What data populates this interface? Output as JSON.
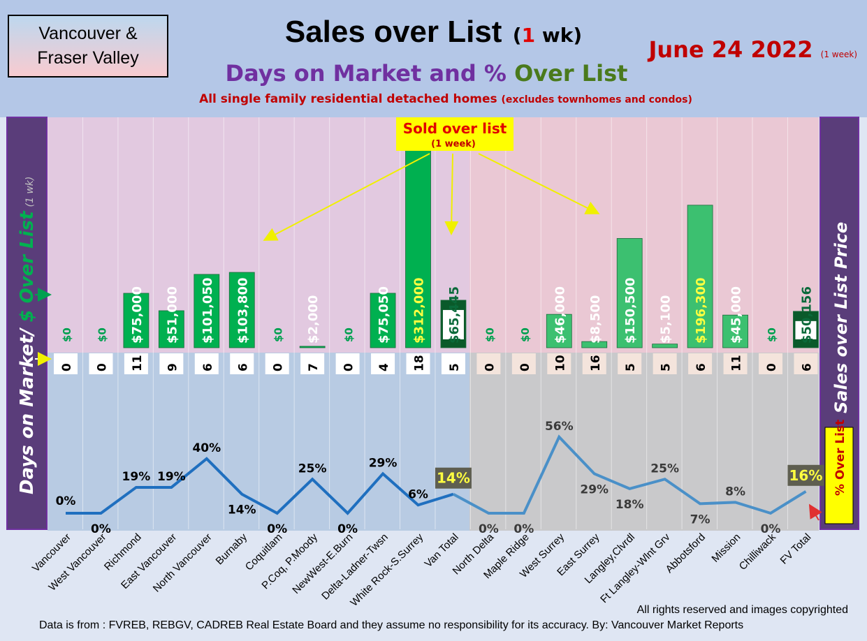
{
  "header": {
    "region_line1": "Vancouver &",
    "region_line2": "Fraser Valley",
    "title_main": "Sales over List",
    "title_paren_open": "(",
    "title_number": "1",
    "title_unit": " wk)",
    "subtitle_part1": "Days on Market and % ",
    "subtitle_part2": "Over List",
    "description": "All single family residential detached homes",
    "description_note": "(excludes townhomes and condos)",
    "date": "June 24  2022",
    "date_note": "(1 week)"
  },
  "side_labels": {
    "left_days": "Days on Market/",
    "left_dollar": " $ Over List",
    "left_note": "(1 wk)",
    "right": "Sales over List Price",
    "pct_box": "% Over List"
  },
  "annotation": {
    "line1": "Sold over list",
    "line2": "(1 week)"
  },
  "footer": {
    "rights": "All rights reserved and  images copyrighted",
    "source": "Data is from : FVREB, REBGV, CADREB Real Estate Board and they assume no responsibility for its accuracy. By: Vancouver Market Reports"
  },
  "colors": {
    "bar_green": "#00b050",
    "bar_light_green": "#3cc070",
    "total_bar": "#0a5a2a",
    "line_van": "#1f6fbf",
    "line_fv": "#4a90c8",
    "left_panel": "#5a3d7a",
    "pink_bg": "#e8c8d8",
    "blue_bg": "#b8cce4",
    "gray_bg": "#cbcbcb"
  },
  "chart_data": {
    "type": "bar",
    "categories": [
      "Vancouver",
      "West Vancouver",
      "Richmond",
      "East Vancouver",
      "North Vancouver",
      "Burnaby",
      "Coquitlam",
      "P.Coq, P.Moody",
      "NewWest-E.Burn",
      "Delta-Ladner-Twsn",
      "White Rock-S.Surrey",
      "Van Total",
      "North Delta",
      "Maple Ridge",
      "West Surrey",
      "East Surrey",
      "Langley,Clvrdl",
      "Ft Langley-Wlnt Grv",
      "Abbotsford",
      "Mission",
      "Chilliwack",
      "FV Total"
    ],
    "series": [
      {
        "name": "$ Over List",
        "values": [
          0,
          0,
          75000,
          51000,
          101050,
          103800,
          0,
          2000,
          0,
          75050,
          312000,
          65445,
          0,
          0,
          46000,
          8500,
          150500,
          5100,
          196300,
          45000,
          0,
          50156
        ],
        "labels": [
          "$0",
          "$0",
          "$75,000",
          "$51,000",
          "$101,050",
          "$103,800",
          "$0",
          "$2,000",
          "$0",
          "$75,050",
          "$312,000",
          "$65,445",
          "$0",
          "$0",
          "$46,000",
          "$8,500",
          "$150,500",
          "$5,100",
          "$196,300",
          "$45,000",
          "$0",
          "$50,156"
        ]
      },
      {
        "name": "Days on Market",
        "values": [
          0,
          0,
          11,
          9,
          6,
          6,
          0,
          7,
          0,
          4,
          18,
          5,
          0,
          0,
          10,
          16,
          5,
          5,
          6,
          11,
          0,
          6
        ]
      },
      {
        "name": "% Over List",
        "values": [
          0,
          0,
          19,
          19,
          40,
          14,
          0,
          25,
          0,
          29,
          6,
          14,
          0,
          0,
          56,
          29,
          18,
          25,
          7,
          8,
          0,
          16
        ],
        "labels": [
          "0%",
          "0%",
          "19%",
          "19%",
          "40%",
          "14%",
          "0%",
          "25%",
          "0%",
          "29%",
          "6%",
          "14%",
          "0%",
          "0%",
          "56%",
          "29%",
          "18%",
          "25%",
          "7%",
          "8%",
          "0%",
          "16%"
        ]
      }
    ],
    "title": "Sales over List (1 wk)",
    "ylabel": "Days on Market/ $ Over List"
  }
}
